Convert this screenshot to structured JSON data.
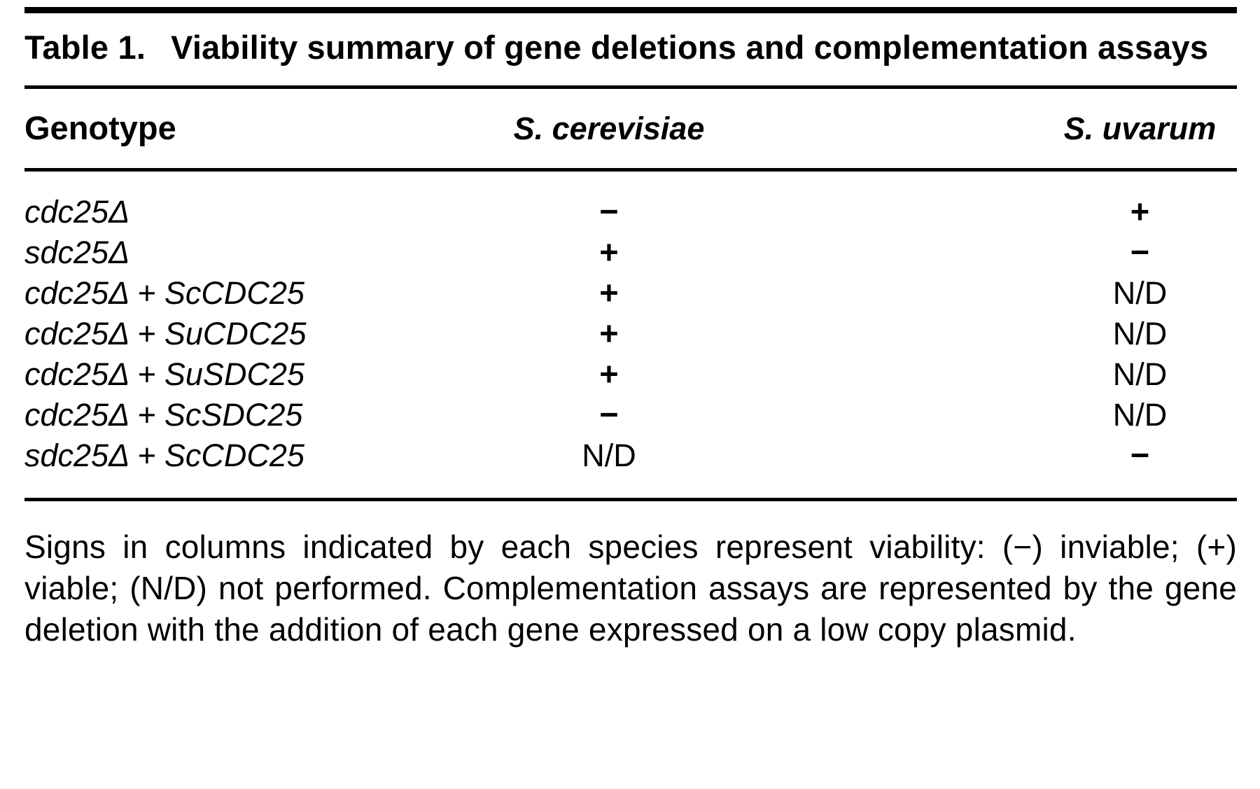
{
  "caption": {
    "label": "Table 1.",
    "title": "Viability summary of gene deletions and complementation assays"
  },
  "table": {
    "columns": [
      "Genotype",
      "S. cerevisiae",
      "S. uvarum"
    ],
    "rows": [
      {
        "genotype": "cdc25Δ",
        "s_cerevisiae": "−",
        "s_uvarum": "+"
      },
      {
        "genotype": "sdc25Δ",
        "s_cerevisiae": "+",
        "s_uvarum": "−"
      },
      {
        "genotype": "cdc25Δ + ScCDC25",
        "s_cerevisiae": "+",
        "s_uvarum": "N/D"
      },
      {
        "genotype": "cdc25Δ + SuCDC25",
        "s_cerevisiae": "+",
        "s_uvarum": "N/D"
      },
      {
        "genotype": "cdc25Δ + SuSDC25",
        "s_cerevisiae": "+",
        "s_uvarum": "N/D"
      },
      {
        "genotype": "cdc25Δ + ScSDC25",
        "s_cerevisiae": "−",
        "s_uvarum": "N/D"
      },
      {
        "genotype": "sdc25Δ + ScCDC25",
        "s_cerevisiae": "N/D",
        "s_uvarum": "−"
      }
    ]
  },
  "footnote": "Signs in columns indicated by each species represent viability: (−) inviable; (+) viable; (N/D) not performed. Complementation assays are represented by the gene deletion with the addition of each gene expressed on a low copy plasmid.",
  "colors": {
    "text": "#000000",
    "background": "#ffffff",
    "rule": "#000000"
  }
}
